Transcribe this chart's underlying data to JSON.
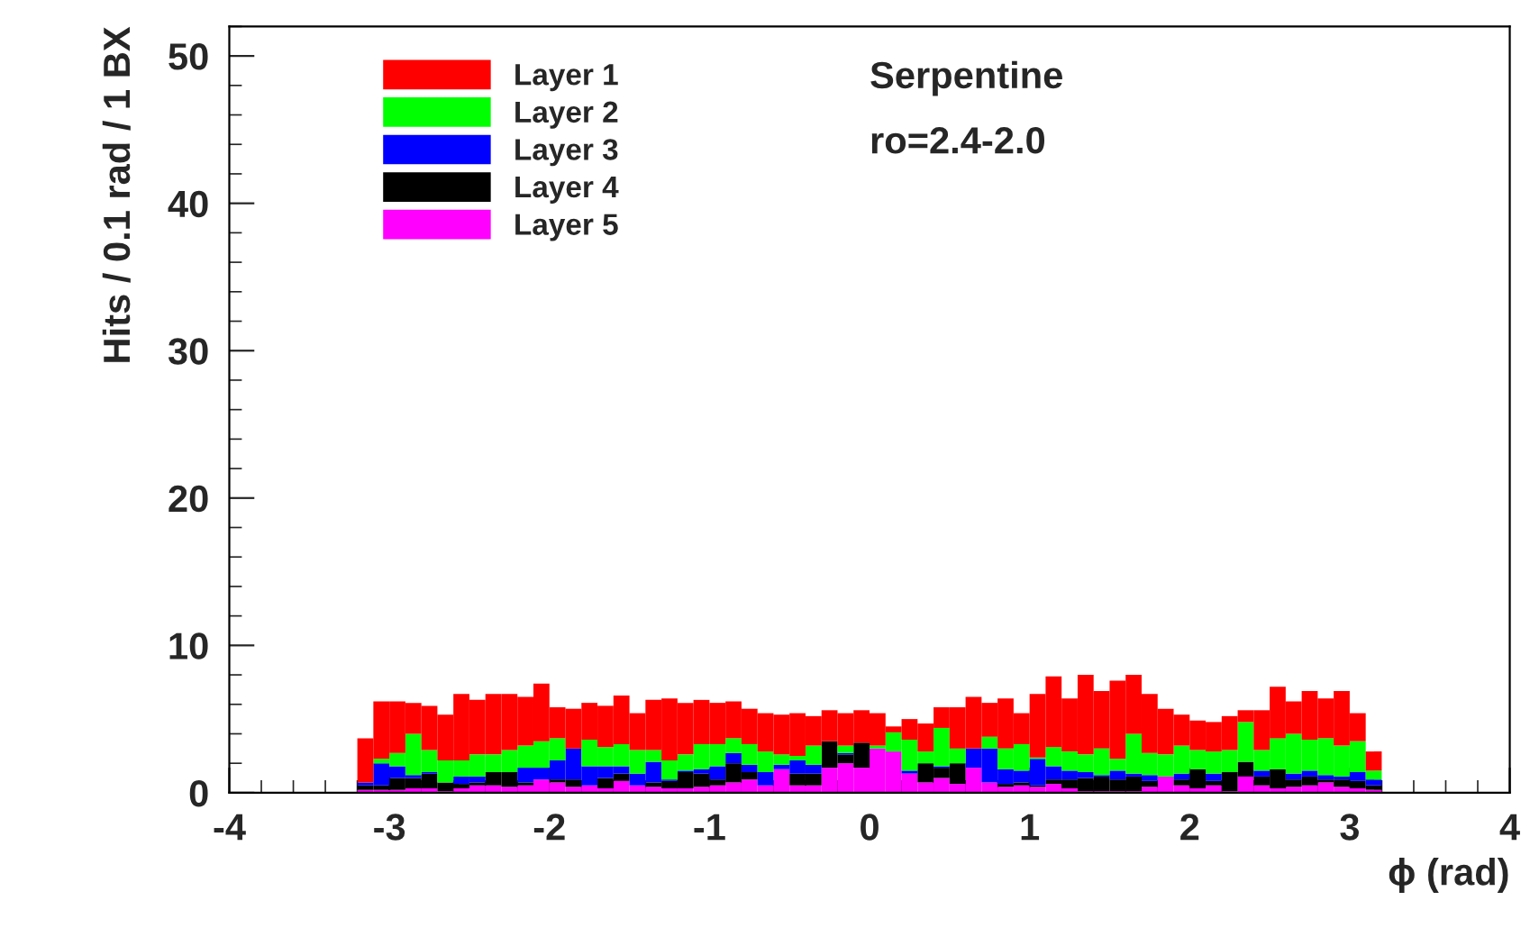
{
  "chart_data": {
    "type": "bar",
    "stacked": true,
    "xlabel": "ϕ (rad)",
    "ylabel": "Hits / 0.1 rad / 1 BX",
    "annotations": [
      "Serpentine",
      "ro=2.4-2.0"
    ],
    "x": [
      -3.15,
      -3.05,
      -2.95,
      -2.85,
      -2.75,
      -2.65,
      -2.55,
      -2.45,
      -2.35,
      -2.25,
      -2.15,
      -2.05,
      -1.95,
      -1.85,
      -1.75,
      -1.65,
      -1.55,
      -1.45,
      -1.35,
      -1.25,
      -1.15,
      -1.05,
      -0.95,
      -0.85,
      -0.75,
      -0.65,
      -0.55,
      -0.45,
      -0.35,
      -0.25,
      -0.15,
      -0.05,
      0.05,
      0.15,
      0.25,
      0.35,
      0.45,
      0.55,
      0.65,
      0.75,
      0.85,
      0.95,
      1.05,
      1.15,
      1.25,
      1.35,
      1.45,
      1.55,
      1.65,
      1.75,
      1.85,
      1.95,
      2.05,
      2.15,
      2.25,
      2.35,
      2.45,
      2.55,
      2.65,
      2.75,
      2.85,
      2.95,
      3.05,
      3.15
    ],
    "series": [
      {
        "name": "Layer 5",
        "color": "#ff00ff",
        "values": [
          0.2,
          0.2,
          0.2,
          0.3,
          0.3,
          0.1,
          0.3,
          0.5,
          0.5,
          0.4,
          0.5,
          0.9,
          0.7,
          0.4,
          0.5,
          0.3,
          0.8,
          0.5,
          0.4,
          0.3,
          0.3,
          0.4,
          0.5,
          0.7,
          0.9,
          0.5,
          1.6,
          0.5,
          0.5,
          1.7,
          2.0,
          1.7,
          3.0,
          2.8,
          1.3,
          0.7,
          1.0,
          0.6,
          1.7,
          0.7,
          0.4,
          0.5,
          0.4,
          0.6,
          0.3,
          0.1,
          0.1,
          0.1,
          0.1,
          0.4,
          1.1,
          0.5,
          0.3,
          0.5,
          0.1,
          1.1,
          0.5,
          0.3,
          0.4,
          0.5,
          0.7,
          0.4,
          0.3,
          0.2
        ]
      },
      {
        "name": "Layer 4",
        "color": "#000000",
        "values": [
          0.3,
          0.3,
          0.8,
          0.7,
          1.0,
          0.6,
          0.3,
          0.2,
          0.9,
          1.0,
          0.2,
          0.0,
          0.2,
          0.5,
          0.0,
          0.7,
          0.5,
          0.0,
          0.3,
          0.5,
          1.1,
          0.9,
          0.4,
          1.3,
          0.5,
          0.0,
          0.0,
          0.8,
          0.8,
          1.8,
          0.6,
          1.7,
          0.0,
          0.0,
          0.0,
          1.3,
          0.7,
          1.4,
          0.0,
          0.0,
          0.2,
          0.2,
          0.1,
          0.3,
          0.6,
          0.9,
          1.0,
          0.8,
          1.0,
          0.4,
          0.0,
          0.4,
          1.3,
          0.3,
          1.3,
          1.0,
          0.6,
          1.3,
          0.5,
          0.6,
          0.2,
          0.5,
          0.5,
          0.3
        ]
      },
      {
        "name": "Layer 3",
        "color": "#0000ff",
        "values": [
          0.2,
          1.5,
          0.8,
          0.2,
          0.1,
          0.0,
          0.5,
          0.4,
          0.0,
          0.0,
          1.0,
          0.8,
          1.3,
          2.1,
          1.3,
          0.8,
          0.5,
          0.8,
          1.4,
          0.1,
          0.1,
          0.3,
          0.9,
          0.7,
          0.5,
          0.9,
          0.3,
          0.9,
          0.6,
          0.0,
          0.1,
          0.0,
          0.0,
          0.0,
          0.2,
          0.0,
          0.1,
          0.0,
          1.3,
          2.3,
          1.0,
          0.8,
          1.8,
          0.9,
          0.6,
          0.4,
          0.1,
          0.6,
          0.2,
          0.4,
          0.0,
          0.4,
          0.0,
          0.5,
          0.0,
          0.0,
          0.4,
          0.0,
          0.4,
          0.4,
          0.3,
          0.2,
          0.6,
          0.4
        ]
      },
      {
        "name": "Layer 2",
        "color": "#00ff00",
        "values": [
          0.0,
          0.3,
          0.9,
          2.8,
          1.5,
          1.5,
          1.1,
          1.5,
          1.2,
          1.5,
          1.5,
          1.8,
          1.5,
          0.0,
          1.8,
          1.3,
          1.5,
          1.6,
          0.8,
          1.3,
          1.1,
          1.7,
          1.5,
          1.0,
          1.4,
          1.4,
          0.7,
          0.3,
          1.3,
          0.0,
          0.5,
          0.0,
          0.2,
          1.3,
          2.1,
          0.8,
          2.6,
          1.0,
          0.0,
          0.8,
          1.4,
          1.8,
          0.1,
          1.3,
          1.3,
          1.2,
          1.8,
          0.8,
          2.7,
          1.5,
          1.5,
          1.9,
          1.3,
          1.5,
          1.5,
          2.7,
          1.4,
          2.1,
          2.7,
          2.1,
          2.5,
          2.1,
          2.1,
          0.6
        ]
      },
      {
        "name": "Layer 1",
        "color": "#ff0000",
        "values": [
          3.0,
          3.9,
          3.5,
          2.1,
          3.0,
          3.1,
          4.5,
          3.7,
          4.1,
          3.8,
          3.3,
          3.9,
          2.1,
          2.7,
          2.5,
          2.8,
          3.3,
          2.5,
          3.4,
          4.2,
          3.5,
          3.0,
          2.8,
          2.5,
          2.4,
          2.6,
          2.7,
          2.9,
          2.0,
          2.1,
          2.2,
          2.2,
          2.2,
          0.4,
          1.4,
          1.9,
          1.4,
          2.8,
          3.5,
          2.3,
          3.4,
          2.1,
          4.3,
          4.8,
          3.6,
          5.4,
          3.9,
          5.3,
          4.0,
          4.0,
          3.1,
          2.1,
          2.0,
          2.0,
          2.3,
          0.8,
          2.7,
          3.5,
          2.2,
          3.3,
          2.7,
          3.7,
          1.9,
          1.3
        ]
      }
    ],
    "xlim": [
      -4,
      4
    ],
    "xticks": [
      -4,
      -3,
      -2,
      -1,
      0,
      1,
      2,
      3,
      4
    ],
    "ylim": [
      0,
      52
    ],
    "yticks": [
      0,
      10,
      20,
      30,
      40,
      50
    ],
    "grid": false,
    "legend": "top left"
  }
}
